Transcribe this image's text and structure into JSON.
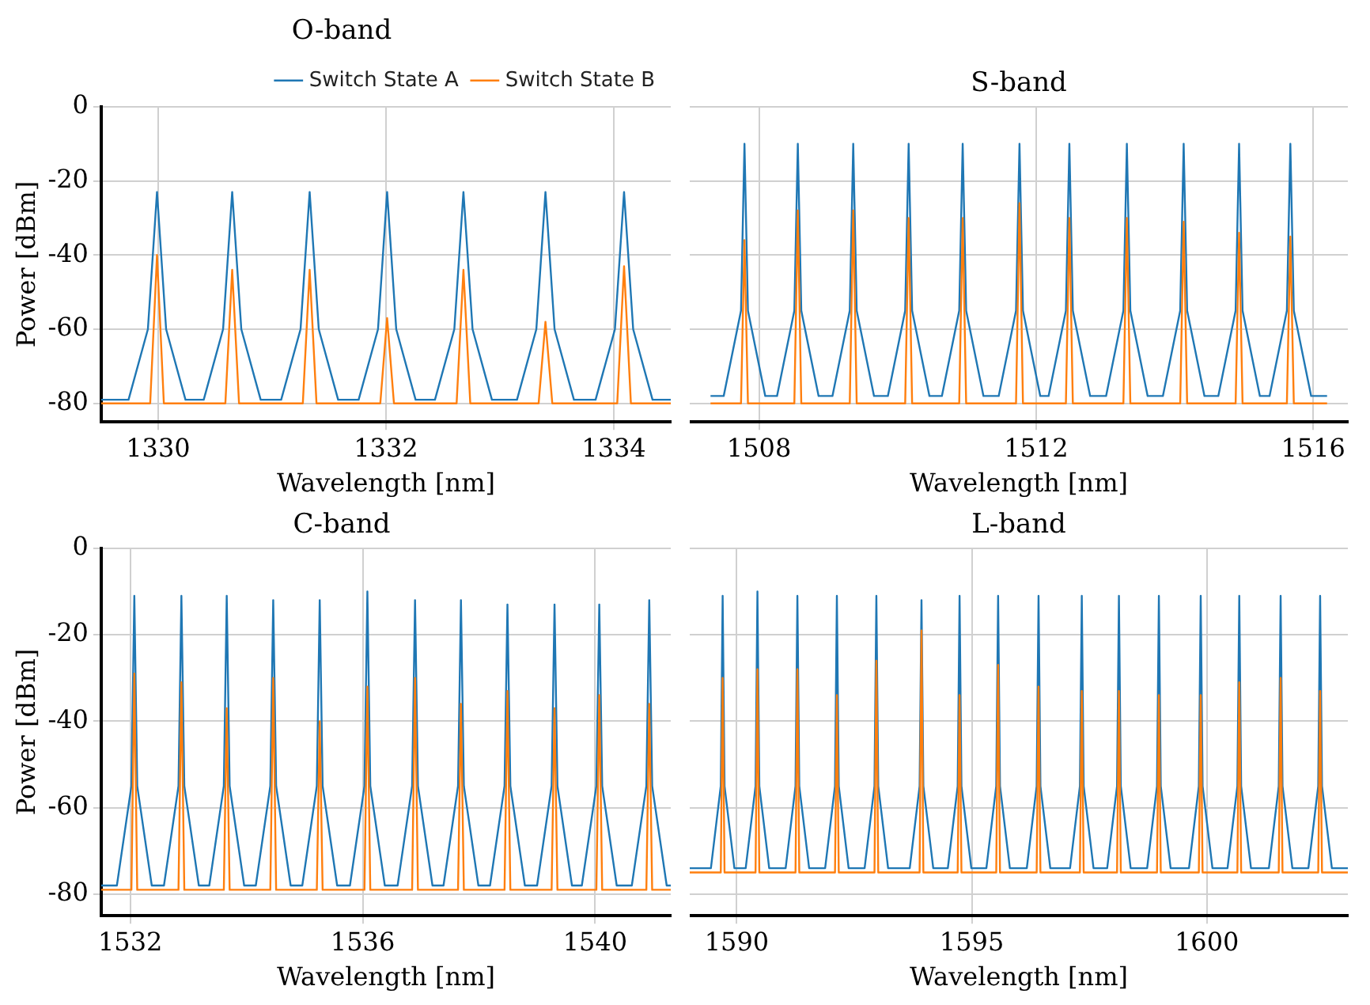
{
  "chart_data": [
    {
      "type": "line",
      "title": "O-band",
      "xlabel": "Wavelength [nm]",
      "ylabel": "Power [dBm]",
      "xlim": [
        1329.5,
        1334.5
      ],
      "xticks": [
        1330,
        1332,
        1334
      ],
      "ylim": [
        -85,
        0
      ],
      "yticks": [
        0,
        -20,
        -40,
        -60,
        -80
      ],
      "grid": true,
      "legend": "top right",
      "series": [
        {
          "name": "Switch State A",
          "color": "#1f77b4",
          "x": [
            1329.5,
            1329.74,
            1329.91,
            1329.99,
            1330.07,
            1330.24,
            1330.4,
            1330.57,
            1330.65,
            1330.73,
            1330.9,
            1331.08,
            1331.25,
            1331.33,
            1331.41,
            1331.58,
            1331.76,
            1331.93,
            1332.01,
            1332.09,
            1332.26,
            1332.43,
            1332.6,
            1332.68,
            1332.76,
            1332.93,
            1333.15,
            1333.32,
            1333.4,
            1333.48,
            1333.65,
            1333.84,
            1334.01,
            1334.09,
            1334.17,
            1334.34,
            1334.5
          ],
          "values": [
            -79,
            -79,
            -60,
            -23,
            -60,
            -79,
            -79,
            -60,
            -23,
            -60,
            -79,
            -79,
            -60,
            -23,
            -60,
            -79,
            -79,
            -60,
            -23,
            -60,
            -79,
            -79,
            -60,
            -23,
            -60,
            -79,
            -79,
            -60,
            -23,
            -60,
            -79,
            -79,
            -60,
            -23,
            -60,
            -79,
            -79
          ]
        },
        {
          "name": "Switch State B",
          "color": "#ff7f0e",
          "x": [
            1329.5,
            1329.93,
            1329.99,
            1330.05,
            1330.59,
            1330.65,
            1330.71,
            1331.27,
            1331.33,
            1331.39,
            1331.95,
            1332.01,
            1332.07,
            1332.62,
            1332.68,
            1332.74,
            1333.34,
            1333.4,
            1333.46,
            1334.03,
            1334.09,
            1334.15,
            1334.5
          ],
          "values": [
            -80,
            -80,
            -40,
            -80,
            -80,
            -44,
            -80,
            -80,
            -44,
            -80,
            -80,
            -57,
            -80,
            -80,
            -44,
            -80,
            -80,
            -58,
            -80,
            -80,
            -43,
            -80,
            -80
          ]
        }
      ]
    },
    {
      "type": "line",
      "title": "S-band",
      "xlabel": "Wavelength [nm]",
      "xlim": [
        1507,
        1516.5
      ],
      "xticks": [
        1508,
        1512,
        1516
      ],
      "ylim": [
        -85,
        0
      ],
      "yticks": [
        0,
        -20,
        -40,
        -60,
        -80
      ],
      "grid": true,
      "tick_labels": "x",
      "series": [
        {
          "color": "#1f77b4",
          "x": [
            1507.3,
            1507.49,
            1507.74,
            1507.79,
            1507.84,
            1508.09,
            1508.26,
            1508.51,
            1508.56,
            1508.61,
            1508.86,
            1509.06,
            1509.31,
            1509.36,
            1509.41,
            1509.66,
            1509.86,
            1510.11,
            1510.16,
            1510.21,
            1510.46,
            1510.64,
            1510.89,
            1510.94,
            1510.99,
            1511.24,
            1511.46,
            1511.71,
            1511.76,
            1511.81,
            1512.06,
            1512.18,
            1512.43,
            1512.48,
            1512.53,
            1512.78,
            1513.01,
            1513.26,
            1513.31,
            1513.36,
            1513.61,
            1513.83,
            1514.08,
            1514.13,
            1514.18,
            1514.43,
            1514.63,
            1514.88,
            1514.93,
            1514.98,
            1515.23,
            1515.37,
            1515.62,
            1515.67,
            1515.72,
            1515.97,
            1516.2
          ],
          "values": [
            -78,
            -78,
            -55,
            -10,
            -55,
            -78,
            -78,
            -55,
            -10,
            -55,
            -78,
            -78,
            -55,
            -10,
            -55,
            -78,
            -78,
            -55,
            -10,
            -55,
            -78,
            -78,
            -55,
            -10,
            -55,
            -78,
            -78,
            -55,
            -10,
            -55,
            -78,
            -78,
            -55,
            -10,
            -55,
            -78,
            -78,
            -55,
            -10,
            -55,
            -78,
            -78,
            -55,
            -10,
            -55,
            -78,
            -78,
            -55,
            -10,
            -55,
            -78,
            -78,
            -55,
            -10,
            -55,
            -78,
            -78
          ]
        },
        {
          "color": "#ff7f0e",
          "x": [
            1507.3,
            1507.74,
            1507.79,
            1507.84,
            1508.51,
            1508.56,
            1508.61,
            1509.31,
            1509.36,
            1509.41,
            1510.11,
            1510.16,
            1510.21,
            1510.89,
            1510.94,
            1510.99,
            1511.71,
            1511.76,
            1511.81,
            1512.43,
            1512.48,
            1512.53,
            1513.26,
            1513.31,
            1513.36,
            1514.08,
            1514.13,
            1514.18,
            1514.88,
            1514.93,
            1514.98,
            1515.62,
            1515.67,
            1515.72,
            1516.2
          ],
          "values": [
            -80,
            -80,
            -36,
            -80,
            -80,
            -28,
            -80,
            -80,
            -28,
            -80,
            -80,
            -30,
            -80,
            -80,
            -30,
            -80,
            -80,
            -26,
            -80,
            -80,
            -30,
            -80,
            -80,
            -30,
            -80,
            -80,
            -31,
            -80,
            -80,
            -34,
            -80,
            -80,
            -35,
            -80,
            -80
          ]
        }
      ]
    },
    {
      "type": "line",
      "title": "C-band",
      "xlabel": "Wavelength [nm]",
      "ylabel": "Power [dBm]",
      "xlim": [
        1531.5,
        1541.3
      ],
      "xticks": [
        1532,
        1536,
        1540
      ],
      "ylim": [
        -85,
        0
      ],
      "yticks": [
        0,
        -20,
        -40,
        -60,
        -80
      ],
      "grid": true,
      "series": [
        {
          "color": "#1f77b4",
          "x": [
            1531.5,
            1531.77,
            1532.02,
            1532.07,
            1532.12,
            1532.37,
            1532.58,
            1532.83,
            1532.88,
            1532.93,
            1533.18,
            1533.36,
            1533.61,
            1533.66,
            1533.71,
            1533.96,
            1534.16,
            1534.41,
            1534.46,
            1534.51,
            1534.76,
            1534.96,
            1535.21,
            1535.26,
            1535.31,
            1535.56,
            1535.78,
            1536.03,
            1536.08,
            1536.13,
            1536.38,
            1536.6,
            1536.85,
            1536.9,
            1536.95,
            1537.2,
            1537.39,
            1537.64,
            1537.69,
            1537.74,
            1537.99,
            1538.19,
            1538.44,
            1538.49,
            1538.54,
            1538.79,
            1539.0,
            1539.25,
            1539.3,
            1539.35,
            1539.6,
            1539.77,
            1540.02,
            1540.07,
            1540.12,
            1540.37,
            1540.63,
            1540.88,
            1540.93,
            1540.98,
            1541.23,
            1541.3
          ],
          "values": [
            -78,
            -78,
            -55,
            -11,
            -55,
            -78,
            -78,
            -55,
            -11,
            -55,
            -78,
            -78,
            -55,
            -11,
            -55,
            -78,
            -78,
            -55,
            -12,
            -55,
            -78,
            -78,
            -55,
            -12,
            -55,
            -78,
            -78,
            -55,
            -10,
            -55,
            -78,
            -78,
            -55,
            -12,
            -55,
            -78,
            -78,
            -55,
            -12,
            -55,
            -78,
            -78,
            -55,
            -13,
            -55,
            -78,
            -78,
            -55,
            -13,
            -55,
            -78,
            -78,
            -55,
            -13,
            -55,
            -78,
            -78,
            -55,
            -12,
            -55,
            -78,
            -78
          ]
        },
        {
          "color": "#ff7f0e",
          "x": [
            1531.5,
            1532.02,
            1532.07,
            1532.12,
            1532.83,
            1532.88,
            1532.93,
            1533.61,
            1533.66,
            1533.71,
            1534.41,
            1534.46,
            1534.51,
            1535.21,
            1535.26,
            1535.31,
            1536.03,
            1536.08,
            1536.13,
            1536.85,
            1536.9,
            1536.95,
            1537.64,
            1537.69,
            1537.74,
            1538.44,
            1538.49,
            1538.54,
            1539.25,
            1539.3,
            1539.35,
            1540.02,
            1540.07,
            1540.12,
            1540.88,
            1540.93,
            1540.98,
            1541.3
          ],
          "values": [
            -79,
            -79,
            -29,
            -79,
            -79,
            -31,
            -79,
            -79,
            -37,
            -79,
            -79,
            -30,
            -79,
            -79,
            -40,
            -79,
            -79,
            -32,
            -79,
            -79,
            -30,
            -79,
            -79,
            -36,
            -79,
            -79,
            -33,
            -79,
            -79,
            -37,
            -79,
            -79,
            -34,
            -79,
            -79,
            -36,
            -79,
            -79
          ]
        }
      ]
    },
    {
      "type": "line",
      "title": "L-band",
      "xlabel": "Wavelength [nm]",
      "xlim": [
        1589,
        1603
      ],
      "xticks": [
        1590,
        1595,
        1600
      ],
      "ylim": [
        -85,
        0
      ],
      "yticks": [
        0,
        -20,
        -40,
        -60,
        -80
      ],
      "grid": true,
      "tick_labels": "x",
      "series": [
        {
          "color": "#1f77b4",
          "x": [
            1589,
            1589.45,
            1589.66,
            1589.7,
            1589.74,
            1589.95,
            1590.19,
            1590.4,
            1590.44,
            1590.48,
            1590.69,
            1591.04,
            1591.25,
            1591.29,
            1591.33,
            1591.54,
            1591.88,
            1592.09,
            1592.13,
            1592.17,
            1592.38,
            1592.72,
            1592.93,
            1592.97,
            1593.01,
            1593.22,
            1593.68,
            1593.89,
            1593.93,
            1593.97,
            1594.18,
            1594.49,
            1594.7,
            1594.74,
            1594.78,
            1594.99,
            1595.31,
            1595.52,
            1595.56,
            1595.6,
            1595.81,
            1596.17,
            1596.38,
            1596.42,
            1596.46,
            1596.67,
            1597.09,
            1597.3,
            1597.34,
            1597.38,
            1597.59,
            1597.88,
            1598.09,
            1598.13,
            1598.17,
            1598.38,
            1598.73,
            1598.94,
            1598.98,
            1599.02,
            1599.23,
            1599.62,
            1599.83,
            1599.87,
            1599.91,
            1600.12,
            1600.44,
            1600.65,
            1600.69,
            1600.73,
            1600.94,
            1601.32,
            1601.53,
            1601.57,
            1601.61,
            1601.82,
            1602.16,
            1602.37,
            1602.41,
            1602.45,
            1602.66,
            1603
          ],
          "values": [
            -74,
            -74,
            -55,
            -11,
            -55,
            -74,
            -74,
            -55,
            -10,
            -55,
            -74,
            -74,
            -55,
            -11,
            -55,
            -74,
            -74,
            -55,
            -11,
            -55,
            -74,
            -74,
            -55,
            -11,
            -55,
            -74,
            -74,
            -55,
            -12,
            -55,
            -74,
            -74,
            -55,
            -11,
            -55,
            -74,
            -74,
            -55,
            -11,
            -55,
            -74,
            -74,
            -55,
            -11,
            -55,
            -74,
            -74,
            -55,
            -11,
            -55,
            -74,
            -74,
            -55,
            -11,
            -55,
            -74,
            -74,
            -55,
            -11,
            -55,
            -74,
            -74,
            -55,
            -11,
            -55,
            -74,
            -74,
            -55,
            -11,
            -55,
            -74,
            -74,
            -55,
            -11,
            -55,
            -74,
            -74,
            -55,
            -11,
            -55,
            -74,
            -74
          ]
        },
        {
          "color": "#ff7f0e",
          "x": [
            1589,
            1589.66,
            1589.7,
            1589.74,
            1590.4,
            1590.44,
            1590.48,
            1591.25,
            1591.29,
            1591.33,
            1592.09,
            1592.13,
            1592.17,
            1592.93,
            1592.97,
            1593.01,
            1593.89,
            1593.93,
            1593.97,
            1594.7,
            1594.74,
            1594.78,
            1595.52,
            1595.56,
            1595.6,
            1596.38,
            1596.42,
            1596.46,
            1597.3,
            1597.34,
            1597.38,
            1598.09,
            1598.13,
            1598.17,
            1598.94,
            1598.98,
            1599.02,
            1599.83,
            1599.87,
            1599.91,
            1600.65,
            1600.69,
            1600.73,
            1601.53,
            1601.57,
            1601.61,
            1602.37,
            1602.41,
            1602.45,
            1603
          ],
          "values": [
            -75,
            -75,
            -30,
            -75,
            -75,
            -28,
            -75,
            -75,
            -28,
            -75,
            -75,
            -34,
            -75,
            -75,
            -26,
            -75,
            -75,
            -19,
            -75,
            -75,
            -34,
            -75,
            -75,
            -27,
            -75,
            -75,
            -32,
            -75,
            -75,
            -33,
            -75,
            -75,
            -33,
            -75,
            -75,
            -34,
            -75,
            -75,
            -34,
            -75,
            -75,
            -31,
            -75,
            -75,
            -30,
            -75,
            -75,
            -33,
            -75,
            -75
          ]
        }
      ]
    }
  ]
}
